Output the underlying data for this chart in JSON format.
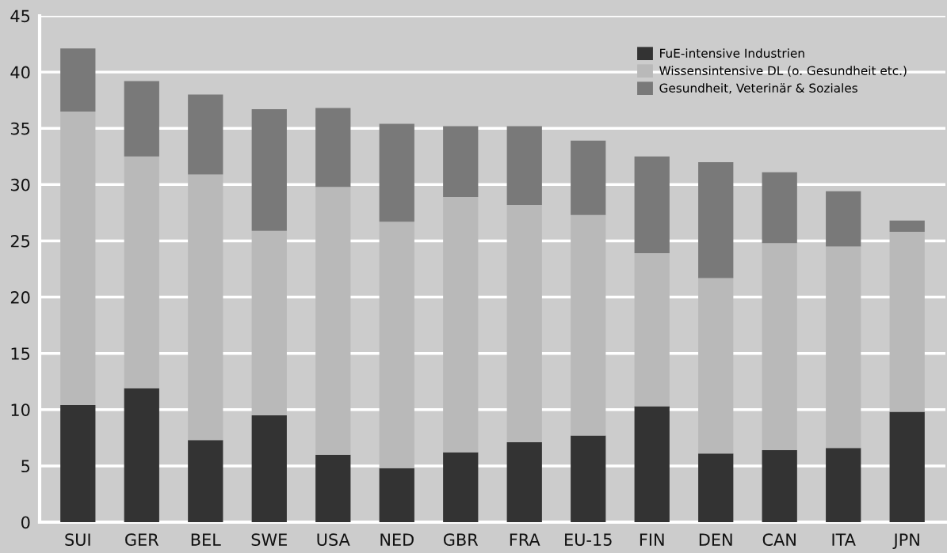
{
  "chart_data": {
    "type": "bar",
    "stacked": true,
    "categories": [
      "SUI",
      "GER",
      "BEL",
      "SWE",
      "USA",
      "NED",
      "GBR",
      "FRA",
      "EU-15",
      "FIN",
      "DEN",
      "CAN",
      "ITA",
      "JPN"
    ],
    "series": [
      {
        "name": "FuE-intensive Industrien",
        "color": "#333333",
        "values": [
          10.4,
          11.9,
          7.3,
          9.5,
          6.0,
          4.8,
          6.2,
          7.1,
          7.7,
          10.3,
          6.1,
          6.4,
          6.6,
          9.8
        ]
      },
      {
        "name": "Wissensintensive DL (o. Gesundheit etc.)",
        "color": "#b9b9b9",
        "values": [
          26.1,
          20.6,
          23.6,
          16.4,
          23.8,
          21.9,
          22.7,
          21.1,
          19.6,
          13.6,
          15.6,
          18.4,
          17.9,
          16.0
        ]
      },
      {
        "name": "Gesundheit, Veterinär & Soziales",
        "color": "#797979",
        "values": [
          5.6,
          6.7,
          7.1,
          10.8,
          7.0,
          8.7,
          6.3,
          7.0,
          6.6,
          8.6,
          10.3,
          6.3,
          4.9,
          1.0
        ]
      }
    ],
    "ylim": [
      0,
      45
    ],
    "yticks": [
      0,
      5,
      10,
      15,
      20,
      25,
      30,
      35,
      40,
      45
    ],
    "grid": "y",
    "legend": "top right"
  }
}
